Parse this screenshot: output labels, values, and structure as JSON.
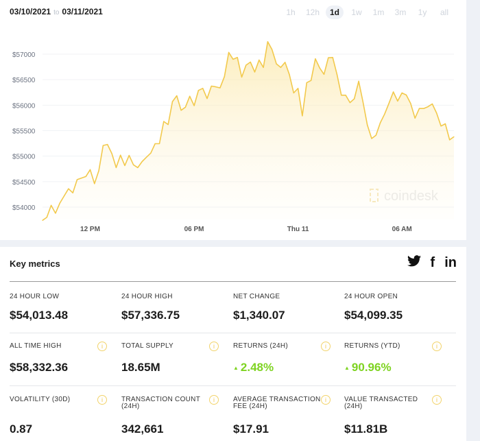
{
  "header": {
    "date_from": "03/10/2021",
    "to_label": "to",
    "date_to": "03/11/2021"
  },
  "periods": [
    {
      "label": "1h",
      "active": false
    },
    {
      "label": "12h",
      "active": false
    },
    {
      "label": "1d",
      "active": true
    },
    {
      "label": "1w",
      "active": false
    },
    {
      "label": "1m",
      "active": false
    },
    {
      "label": "3m",
      "active": false
    },
    {
      "label": "1y",
      "active": false
    },
    {
      "label": "all",
      "active": false
    }
  ],
  "chart_data": {
    "type": "area",
    "line_color": "#f2c94c",
    "grid": true,
    "watermark": "coindesk",
    "ylim": [
      54000,
      57000
    ],
    "y_ticks": [
      {
        "value": 57000,
        "label": "$57000"
      },
      {
        "value": 56500,
        "label": "$56500"
      },
      {
        "value": 56000,
        "label": "$56000"
      },
      {
        "value": 55500,
        "label": "$55500"
      },
      {
        "value": 55000,
        "label": "$55000"
      },
      {
        "value": 54500,
        "label": "$54500"
      },
      {
        "value": 54000,
        "label": "$54000"
      }
    ],
    "x_ticks": [
      {
        "value": "03/10 12:00",
        "label": "12 PM"
      },
      {
        "value": "03/10 18:00",
        "label": "06 PM"
      },
      {
        "value": "03/11 00:00",
        "label": "Thu 11"
      },
      {
        "value": "03/11 06:00",
        "label": "06 AM"
      }
    ],
    "points": [
      [
        "03/10 09:15",
        53740
      ],
      [
        "03/10 09:30",
        53800
      ],
      [
        "03/10 09:45",
        54035
      ],
      [
        "03/10 10:00",
        53880
      ],
      [
        "03/10 10:15",
        54080
      ],
      [
        "03/10 10:30",
        54220
      ],
      [
        "03/10 10:45",
        54360
      ],
      [
        "03/10 11:00",
        54280
      ],
      [
        "03/10 11:15",
        54540
      ],
      [
        "03/10 11:30",
        54570
      ],
      [
        "03/10 11:45",
        54600
      ],
      [
        "03/10 12:00",
        54735
      ],
      [
        "03/10 12:15",
        54460
      ],
      [
        "03/10 12:30",
        54715
      ],
      [
        "03/10 12:45",
        55210
      ],
      [
        "03/10 13:00",
        55230
      ],
      [
        "03/10 13:15",
        55050
      ],
      [
        "03/10 13:30",
        54775
      ],
      [
        "03/10 13:45",
        55020
      ],
      [
        "03/10 14:00",
        54815
      ],
      [
        "03/10 14:15",
        55015
      ],
      [
        "03/10 14:30",
        54830
      ],
      [
        "03/10 14:45",
        54775
      ],
      [
        "03/10 15:00",
        54895
      ],
      [
        "03/10 15:15",
        54980
      ],
      [
        "03/10 15:30",
        55060
      ],
      [
        "03/10 15:45",
        55245
      ],
      [
        "03/10 16:00",
        55245
      ],
      [
        "03/10 16:15",
        55680
      ],
      [
        "03/10 16:30",
        55620
      ],
      [
        "03/10 16:45",
        56070
      ],
      [
        "03/10 17:00",
        56185
      ],
      [
        "03/10 17:15",
        55900
      ],
      [
        "03/10 17:30",
        55960
      ],
      [
        "03/10 17:45",
        56175
      ],
      [
        "03/10 18:00",
        55990
      ],
      [
        "03/10 18:15",
        56290
      ],
      [
        "03/10 18:30",
        56330
      ],
      [
        "03/10 18:45",
        56130
      ],
      [
        "03/10 19:00",
        56375
      ],
      [
        "03/10 19:15",
        56360
      ],
      [
        "03/10 19:30",
        56340
      ],
      [
        "03/10 19:45",
        56560
      ],
      [
        "03/10 20:00",
        57035
      ],
      [
        "03/10 20:15",
        56900
      ],
      [
        "03/10 20:30",
        56935
      ],
      [
        "03/10 20:45",
        56550
      ],
      [
        "03/10 21:00",
        56785
      ],
      [
        "03/10 21:15",
        56845
      ],
      [
        "03/10 21:30",
        56650
      ],
      [
        "03/10 21:45",
        56885
      ],
      [
        "03/10 22:00",
        56740
      ],
      [
        "03/10 22:15",
        57245
      ],
      [
        "03/10 22:30",
        57090
      ],
      [
        "03/10 22:45",
        56810
      ],
      [
        "03/10 23:00",
        56740
      ],
      [
        "03/10 23:15",
        56840
      ],
      [
        "03/10 23:30",
        56600
      ],
      [
        "03/10 23:45",
        56240
      ],
      [
        "03/11 00:00",
        56330
      ],
      [
        "03/11 00:15",
        55790
      ],
      [
        "03/11 00:30",
        56440
      ],
      [
        "03/11 00:45",
        56485
      ],
      [
        "03/11 01:00",
        56910
      ],
      [
        "03/11 01:15",
        56730
      ],
      [
        "03/11 01:30",
        56605
      ],
      [
        "03/11 01:45",
        56930
      ],
      [
        "03/11 02:00",
        56935
      ],
      [
        "03/11 02:15",
        56600
      ],
      [
        "03/11 02:30",
        56195
      ],
      [
        "03/11 02:45",
        56195
      ],
      [
        "03/11 03:00",
        56050
      ],
      [
        "03/11 03:15",
        56125
      ],
      [
        "03/11 03:30",
        56470
      ],
      [
        "03/11 03:45",
        56060
      ],
      [
        "03/11 04:00",
        55610
      ],
      [
        "03/11 04:15",
        55345
      ],
      [
        "03/11 04:30",
        55410
      ],
      [
        "03/11 04:45",
        55655
      ],
      [
        "03/11 05:00",
        55825
      ],
      [
        "03/11 05:15",
        56040
      ],
      [
        "03/11 05:30",
        56260
      ],
      [
        "03/11 05:45",
        56080
      ],
      [
        "03/11 06:00",
        56240
      ],
      [
        "03/11 06:15",
        56200
      ],
      [
        "03/11 06:30",
        56035
      ],
      [
        "03/11 06:45",
        55745
      ],
      [
        "03/11 07:00",
        55935
      ],
      [
        "03/11 07:15",
        55935
      ],
      [
        "03/11 07:30",
        55970
      ],
      [
        "03/11 07:45",
        56025
      ],
      [
        "03/11 08:00",
        55845
      ],
      [
        "03/11 08:15",
        55590
      ],
      [
        "03/11 08:30",
        55635
      ],
      [
        "03/11 08:45",
        55320
      ],
      [
        "03/11 09:00",
        55380
      ]
    ]
  },
  "metrics": {
    "title": "Key metrics",
    "social": [
      "twitter-icon",
      "facebook-icon",
      "linkedin-icon"
    ],
    "social_glyphs": {
      "twitter": "🐦",
      "facebook": "f",
      "linkedin": "in"
    },
    "items": [
      {
        "label": "24 Hour Low",
        "value": "$54,013.48"
      },
      {
        "label": "24 Hour High",
        "value": "$57,336.75"
      },
      {
        "label": "Net Change",
        "value": "$1,340.07"
      },
      {
        "label": "24 Hour Open",
        "value": "$54,099.35"
      },
      {
        "label": "All Time High",
        "value": "$58,332.36"
      },
      {
        "label": "Total Supply",
        "value": "18.65M"
      },
      {
        "label": "Returns (24H)",
        "value": "2.48%"
      },
      {
        "label": "Returns (YTD)",
        "value": "90.96%"
      },
      {
        "label": "Volatility (30D)",
        "value": "0.87"
      },
      {
        "label": "Transaction Count (24H)",
        "value": "342,661"
      },
      {
        "label": "Average Transaction Fee (24H)",
        "value": "$17.91"
      },
      {
        "label": "Value Transacted (24H)",
        "value": "$11.81B"
      }
    ],
    "positive_color": "#7ed321",
    "info_glyph": "i"
  }
}
